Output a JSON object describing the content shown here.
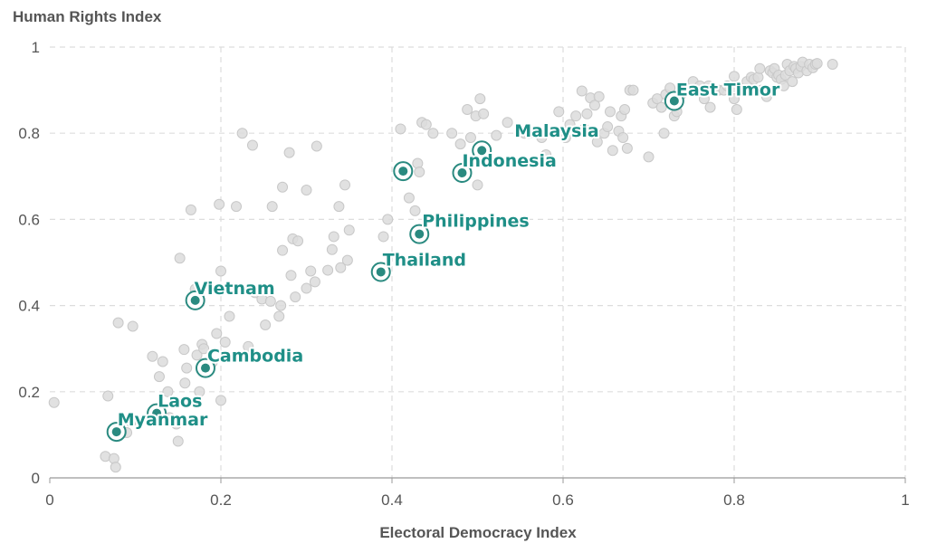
{
  "chart_data": {
    "type": "scatter",
    "title": "",
    "xlabel": "Electoral Democracy Index",
    "ylabel": "Human Rights Index",
    "xlim": [
      0,
      1
    ],
    "ylim": [
      0,
      1
    ],
    "x_ticks": [
      "0",
      "0.2",
      "0.4",
      "0.6",
      "0.8",
      "1"
    ],
    "y_ticks": [
      "0",
      "0.2",
      "0.4",
      "0.6",
      "0.8",
      "1"
    ],
    "grid": true,
    "colors": {
      "highlight": "#2a8a80",
      "label": "#1f8f87",
      "background_point": "#dcdcdc",
      "background_point_stroke": "#c8c8c8",
      "grid": "#dddddd",
      "axis": "#999999"
    },
    "highlighted": [
      {
        "name": "East Timor",
        "x": 0.73,
        "y": 0.875
      },
      {
        "name": "Malaysia",
        "x": 0.505,
        "y": 0.76
      },
      {
        "name": "Indonesia",
        "x": 0.482,
        "y": 0.708
      },
      {
        "name": "Philippines",
        "x": 0.432,
        "y": 0.566
      },
      {
        "name": "Thailand",
        "x": 0.387,
        "y": 0.478
      },
      {
        "name": "Vietnam",
        "x": 0.17,
        "y": 0.412
      },
      {
        "name": "Cambodia",
        "x": 0.182,
        "y": 0.255
      },
      {
        "name": "Laos",
        "x": 0.125,
        "y": 0.15
      },
      {
        "name": "Myanmar",
        "x": 0.078,
        "y": 0.107
      },
      {
        "name": "",
        "x": 0.413,
        "y": 0.712
      }
    ],
    "background_points": [
      [
        0.005,
        0.175
      ],
      [
        0.065,
        0.05
      ],
      [
        0.075,
        0.045
      ],
      [
        0.077,
        0.025
      ],
      [
        0.068,
        0.19
      ],
      [
        0.09,
        0.105
      ],
      [
        0.095,
        0.13
      ],
      [
        0.08,
        0.36
      ],
      [
        0.097,
        0.352
      ],
      [
        0.12,
        0.282
      ],
      [
        0.128,
        0.235
      ],
      [
        0.132,
        0.27
      ],
      [
        0.138,
        0.2
      ],
      [
        0.14,
        0.14
      ],
      [
        0.148,
        0.125
      ],
      [
        0.15,
        0.085
      ],
      [
        0.152,
        0.51
      ],
      [
        0.157,
        0.298
      ],
      [
        0.158,
        0.22
      ],
      [
        0.16,
        0.255
      ],
      [
        0.165,
        0.622
      ],
      [
        0.17,
        0.438
      ],
      [
        0.172,
        0.285
      ],
      [
        0.175,
        0.2
      ],
      [
        0.178,
        0.31
      ],
      [
        0.18,
        0.3
      ],
      [
        0.19,
        0.268
      ],
      [
        0.195,
        0.335
      ],
      [
        0.198,
        0.635
      ],
      [
        0.2,
        0.48
      ],
      [
        0.2,
        0.18
      ],
      [
        0.205,
        0.315
      ],
      [
        0.21,
        0.375
      ],
      [
        0.218,
        0.63
      ],
      [
        0.225,
        0.8
      ],
      [
        0.232,
        0.305
      ],
      [
        0.237,
        0.772
      ],
      [
        0.24,
        0.43
      ],
      [
        0.248,
        0.415
      ],
      [
        0.252,
        0.355
      ],
      [
        0.258,
        0.41
      ],
      [
        0.26,
        0.63
      ],
      [
        0.268,
        0.375
      ],
      [
        0.27,
        0.4
      ],
      [
        0.272,
        0.675
      ],
      [
        0.272,
        0.528
      ],
      [
        0.28,
        0.755
      ],
      [
        0.282,
        0.47
      ],
      [
        0.284,
        0.555
      ],
      [
        0.287,
        0.42
      ],
      [
        0.29,
        0.55
      ],
      [
        0.3,
        0.668
      ],
      [
        0.3,
        0.44
      ],
      [
        0.305,
        0.48
      ],
      [
        0.31,
        0.455
      ],
      [
        0.312,
        0.77
      ],
      [
        0.325,
        0.482
      ],
      [
        0.33,
        0.53
      ],
      [
        0.332,
        0.56
      ],
      [
        0.338,
        0.63
      ],
      [
        0.34,
        0.488
      ],
      [
        0.345,
        0.68
      ],
      [
        0.348,
        0.505
      ],
      [
        0.35,
        0.575
      ],
      [
        0.39,
        0.56
      ],
      [
        0.395,
        0.6
      ],
      [
        0.41,
        0.81
      ],
      [
        0.42,
        0.65
      ],
      [
        0.427,
        0.62
      ],
      [
        0.43,
        0.73
      ],
      [
        0.432,
        0.71
      ],
      [
        0.435,
        0.825
      ],
      [
        0.44,
        0.82
      ],
      [
        0.448,
        0.8
      ],
      [
        0.47,
        0.8
      ],
      [
        0.48,
        0.775
      ],
      [
        0.488,
        0.855
      ],
      [
        0.492,
        0.79
      ],
      [
        0.498,
        0.84
      ],
      [
        0.5,
        0.68
      ],
      [
        0.503,
        0.88
      ],
      [
        0.507,
        0.845
      ],
      [
        0.51,
        0.76
      ],
      [
        0.522,
        0.795
      ],
      [
        0.535,
        0.825
      ],
      [
        0.555,
        0.8
      ],
      [
        0.56,
        0.8
      ],
      [
        0.572,
        0.8
      ],
      [
        0.575,
        0.79
      ],
      [
        0.58,
        0.75
      ],
      [
        0.595,
        0.85
      ],
      [
        0.603,
        0.79
      ],
      [
        0.608,
        0.82
      ],
      [
        0.615,
        0.84
      ],
      [
        0.622,
        0.898
      ],
      [
        0.625,
        0.81
      ],
      [
        0.628,
        0.845
      ],
      [
        0.632,
        0.882
      ],
      [
        0.637,
        0.865
      ],
      [
        0.64,
        0.78
      ],
      [
        0.642,
        0.885
      ],
      [
        0.648,
        0.8
      ],
      [
        0.652,
        0.815
      ],
      [
        0.655,
        0.85
      ],
      [
        0.658,
        0.76
      ],
      [
        0.665,
        0.805
      ],
      [
        0.668,
        0.84
      ],
      [
        0.67,
        0.79
      ],
      [
        0.672,
        0.855
      ],
      [
        0.675,
        0.765
      ],
      [
        0.678,
        0.9
      ],
      [
        0.682,
        0.9
      ],
      [
        0.7,
        0.745
      ],
      [
        0.705,
        0.87
      ],
      [
        0.71,
        0.88
      ],
      [
        0.715,
        0.86
      ],
      [
        0.718,
        0.8
      ],
      [
        0.72,
        0.89
      ],
      [
        0.725,
        0.905
      ],
      [
        0.73,
        0.84
      ],
      [
        0.733,
        0.85
      ],
      [
        0.738,
        0.89
      ],
      [
        0.745,
        0.9
      ],
      [
        0.752,
        0.92
      ],
      [
        0.76,
        0.91
      ],
      [
        0.765,
        0.88
      ],
      [
        0.77,
        0.91
      ],
      [
        0.772,
        0.86
      ],
      [
        0.776,
        0.9
      ],
      [
        0.782,
        0.9
      ],
      [
        0.788,
        0.9
      ],
      [
        0.792,
        0.91
      ],
      [
        0.8,
        0.932
      ],
      [
        0.8,
        0.88
      ],
      [
        0.803,
        0.855
      ],
      [
        0.808,
        0.9
      ],
      [
        0.812,
        0.9
      ],
      [
        0.815,
        0.92
      ],
      [
        0.82,
        0.93
      ],
      [
        0.823,
        0.925
      ],
      [
        0.828,
        0.93
      ],
      [
        0.83,
        0.95
      ],
      [
        0.832,
        0.9
      ],
      [
        0.838,
        0.885
      ],
      [
        0.842,
        0.945
      ],
      [
        0.845,
        0.94
      ],
      [
        0.847,
        0.95
      ],
      [
        0.85,
        0.93
      ],
      [
        0.852,
        0.935
      ],
      [
        0.855,
        0.925
      ],
      [
        0.858,
        0.91
      ],
      [
        0.86,
        0.935
      ],
      [
        0.862,
        0.96
      ],
      [
        0.865,
        0.945
      ],
      [
        0.868,
        0.92
      ],
      [
        0.87,
        0.955
      ],
      [
        0.872,
        0.95
      ],
      [
        0.875,
        0.94
      ],
      [
        0.878,
        0.955
      ],
      [
        0.88,
        0.965
      ],
      [
        0.885,
        0.945
      ],
      [
        0.888,
        0.96
      ],
      [
        0.892,
        0.952
      ],
      [
        0.895,
        0.96
      ],
      [
        0.897,
        0.962
      ],
      [
        0.915,
        0.96
      ]
    ]
  }
}
